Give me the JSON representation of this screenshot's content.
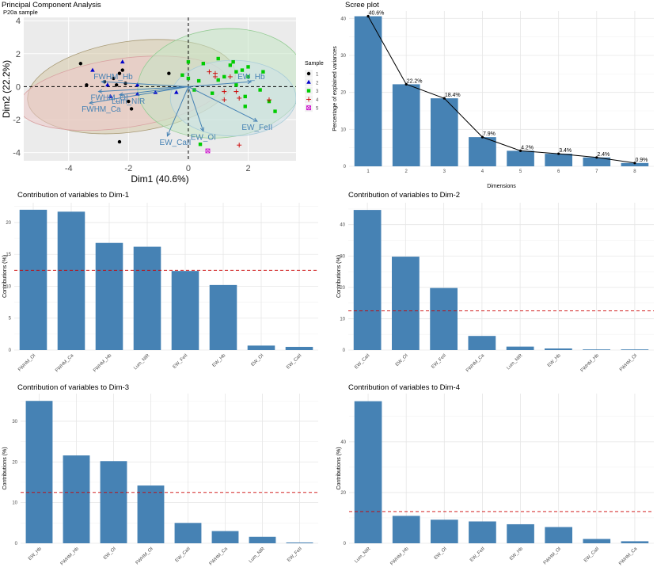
{
  "colors": {
    "bar": "#4682b4",
    "refline": "#cc0000",
    "panel": "#ebebeb",
    "grid": "#e6e6e6"
  },
  "chart_data": [
    {
      "id": "pca",
      "type": "scatter",
      "title": "Principal Component Analysis",
      "subtitle": "P20a sample",
      "xlabel": "Dim1 (40.6%)",
      "ylabel": "Dim2 (22.2%)",
      "xlim": [
        -5.5,
        3.6
      ],
      "ylim": [
        -4.5,
        4.2
      ],
      "xticks": [
        -4,
        -2,
        0,
        2
      ],
      "yticks": [
        -4,
        -2,
        0,
        2,
        4
      ],
      "legend": {
        "title": "Sample",
        "position": "right",
        "entries": [
          {
            "label": "1",
            "color": "#000000",
            "marker": "circle"
          },
          {
            "label": "2",
            "color": "#0000cc",
            "marker": "triangle"
          },
          {
            "label": "3",
            "color": "#00cc00",
            "marker": "square"
          },
          {
            "label": "4",
            "color": "#cc0000",
            "marker": "plus"
          },
          {
            "label": "5",
            "color": "#cc00cc",
            "marker": "boxx"
          }
        ]
      },
      "ellipses": [
        {
          "group": "1",
          "cx": -1.9,
          "cy": 0.0,
          "rx": 3.5,
          "ry": 2.75,
          "angle": -8,
          "fill": "#d5c9a8",
          "stroke": "#a89a75"
        },
        {
          "group": "2",
          "cx": -2.2,
          "cy": -0.4,
          "rx": 3.5,
          "ry": 2.1,
          "angle": -8,
          "fill": "#ecc9c9",
          "stroke": "#d9a3a3"
        },
        {
          "group": "3",
          "cx": 1.1,
          "cy": 0.2,
          "rx": 2.8,
          "ry": 3.3,
          "angle": -6,
          "fill": "#c4e6c4",
          "stroke": "#94cc94"
        },
        {
          "group": "4",
          "cx": 1.5,
          "cy": -0.7,
          "rx": 2.1,
          "ry": 2.3,
          "angle": 0,
          "fill": "#cde0e8",
          "stroke": "#a8ccd8"
        }
      ],
      "points": [
        {
          "x": -3.6,
          "y": 1.4,
          "g": "1"
        },
        {
          "x": -2.2,
          "y": 1.0,
          "g": "1"
        },
        {
          "x": -2.3,
          "y": 0.8,
          "g": "1"
        },
        {
          "x": -2.5,
          "y": 0.5,
          "g": "1"
        },
        {
          "x": -2.1,
          "y": 0.2,
          "g": "1"
        },
        {
          "x": -2.4,
          "y": 0.1,
          "g": "1"
        },
        {
          "x": -3.4,
          "y": 0.1,
          "g": "1"
        },
        {
          "x": -2.8,
          "y": 0.3,
          "g": "1"
        },
        {
          "x": -2.0,
          "y": -0.9,
          "g": "1"
        },
        {
          "x": -1.9,
          "y": -1.35,
          "g": "1"
        },
        {
          "x": -2.3,
          "y": -3.35,
          "g": "1"
        },
        {
          "x": -0.65,
          "y": 0.8,
          "g": "1"
        },
        {
          "x": -3.2,
          "y": 1.0,
          "g": "2"
        },
        {
          "x": -2.2,
          "y": 1.5,
          "g": "2"
        },
        {
          "x": -2.7,
          "y": 0.1,
          "g": "2"
        },
        {
          "x": -1.7,
          "y": 0.1,
          "g": "2"
        },
        {
          "x": -1.1,
          "y": -0.35,
          "g": "2"
        },
        {
          "x": -1.7,
          "y": -0.45,
          "g": "2"
        },
        {
          "x": -2.6,
          "y": -0.6,
          "g": "2"
        },
        {
          "x": -0.4,
          "y": -0.35,
          "g": "2"
        },
        {
          "x": 0.0,
          "y": 1.5,
          "g": "3"
        },
        {
          "x": 0.5,
          "y": 1.4,
          "g": "3"
        },
        {
          "x": 1.5,
          "y": 1.5,
          "g": "3"
        },
        {
          "x": 1.0,
          "y": 1.7,
          "g": "3"
        },
        {
          "x": 1.4,
          "y": 1.3,
          "g": "3"
        },
        {
          "x": 2.0,
          "y": 1.2,
          "g": "3"
        },
        {
          "x": 1.8,
          "y": 1.0,
          "g": "3"
        },
        {
          "x": 2.0,
          "y": 0.6,
          "g": "3"
        },
        {
          "x": 1.2,
          "y": 0.6,
          "g": "3"
        },
        {
          "x": 1.6,
          "y": 0.9,
          "g": "3"
        },
        {
          "x": 2.5,
          "y": 0.9,
          "g": "3"
        },
        {
          "x": -0.2,
          "y": 0.7,
          "g": "3"
        },
        {
          "x": 0.0,
          "y": 0.5,
          "g": "3"
        },
        {
          "x": 0.35,
          "y": 0.35,
          "g": "3"
        },
        {
          "x": 1.0,
          "y": 0.4,
          "g": "3"
        },
        {
          "x": 1.6,
          "y": 0.1,
          "g": "3"
        },
        {
          "x": 0.8,
          "y": -0.4,
          "g": "3"
        },
        {
          "x": 2.4,
          "y": -0.2,
          "g": "3"
        },
        {
          "x": 2.7,
          "y": -0.9,
          "g": "3"
        },
        {
          "x": 0.2,
          "y": -0.2,
          "g": "3"
        },
        {
          "x": 1.9,
          "y": -0.6,
          "g": "3"
        },
        {
          "x": 2.9,
          "y": -1.5,
          "g": "3"
        },
        {
          "x": 1.9,
          "y": -1.2,
          "g": "3"
        },
        {
          "x": 0.4,
          "y": -3.5,
          "g": "3"
        },
        {
          "x": 0.7,
          "y": 0.9,
          "g": "4"
        },
        {
          "x": 0.9,
          "y": 0.8,
          "g": "4"
        },
        {
          "x": 1.4,
          "y": 0.6,
          "g": "4"
        },
        {
          "x": 0.9,
          "y": 0.6,
          "g": "4"
        },
        {
          "x": 1.2,
          "y": -0.3,
          "g": "4"
        },
        {
          "x": 1.6,
          "y": -0.3,
          "g": "4"
        },
        {
          "x": 1.7,
          "y": -0.7,
          "g": "4"
        },
        {
          "x": 1.2,
          "y": -0.8,
          "g": "4"
        },
        {
          "x": 2.7,
          "y": -0.8,
          "g": "4"
        },
        {
          "x": 1.7,
          "y": -3.55,
          "g": "4"
        },
        {
          "x": 0.65,
          "y": -3.9,
          "g": "5"
        }
      ],
      "variables": [
        {
          "name": "FWHM_Hb",
          "x": -2.9,
          "y": 0.3
        },
        {
          "name": "FWHM_OI",
          "x": -3.0,
          "y": -0.3
        },
        {
          "name": "FWHM_Ca",
          "x": -3.3,
          "y": -1.0
        },
        {
          "name": "Lum_NIR",
          "x": -2.3,
          "y": -0.5
        },
        {
          "name": "EW_Hb",
          "x": 2.1,
          "y": 0.3
        },
        {
          "name": "EW_FeII",
          "x": 2.3,
          "y": -2.1
        },
        {
          "name": "EW_OI",
          "x": 0.5,
          "y": -2.7
        },
        {
          "name": "EW_CaII",
          "x": -0.7,
          "y": -3.0
        }
      ]
    },
    {
      "id": "scree",
      "type": "bar",
      "title": "Scree plot",
      "xlabel": "Dimensions",
      "ylabel": "Percentage of explained variances",
      "categories": [
        "1",
        "2",
        "3",
        "4",
        "5",
        "6",
        "7",
        "8"
      ],
      "values": [
        40.6,
        22.2,
        18.4,
        7.9,
        4.2,
        3.4,
        2.4,
        0.9
      ],
      "labels": [
        "40.6%",
        "22.2%",
        "18.4%",
        "7.9%",
        "4.2%",
        "3.4%",
        "2.4%",
        "0.9%"
      ],
      "ylim": [
        0,
        42
      ],
      "yticks": [
        0,
        10,
        20,
        30,
        40
      ]
    },
    {
      "id": "dim1",
      "type": "bar",
      "title": "Contribution of variables to Dim-1",
      "ylabel": "Contributions (%)",
      "categories": [
        "FWHM_OI",
        "FWHM_Ca",
        "FWHM_Hb",
        "Lum_NIR",
        "EW_FeII",
        "EW_Hb",
        "EW_OI",
        "EW_CaII"
      ],
      "values": [
        22.0,
        21.7,
        16.8,
        16.2,
        12.4,
        10.2,
        0.7,
        0.5
      ],
      "refline": 12.5,
      "ylim": [
        0,
        23.1
      ],
      "yticks": [
        0,
        5,
        10,
        15,
        20
      ]
    },
    {
      "id": "dim2",
      "type": "bar",
      "title": "Contribution of variables to Dim-2",
      "ylabel": "Contributions (%)",
      "categories": [
        "EW_CaII",
        "EW_OI",
        "EW_FeII",
        "FWHM_Ca",
        "Lum_NIR",
        "EW_Hb",
        "FWHM_Hb",
        "FWHM_OI"
      ],
      "values": [
        44.7,
        29.8,
        19.8,
        4.5,
        1.1,
        0.5,
        0.2,
        0.2
      ],
      "refline": 12.5,
      "ylim": [
        0,
        47
      ],
      "yticks": [
        0,
        10,
        20,
        30,
        40
      ]
    },
    {
      "id": "dim3",
      "type": "bar",
      "title": "Contribution of variables to Dim-3",
      "ylabel": "Contributions (%)",
      "categories": [
        "EW_Hb",
        "FWHM_Hb",
        "EW_OI",
        "FWHM_OI",
        "EW_CaII",
        "FWHM_Ca",
        "Lum_NIR",
        "EW_FeII"
      ],
      "values": [
        35.0,
        21.6,
        20.2,
        14.2,
        5.0,
        3.0,
        1.6,
        0.2
      ],
      "refline": 12.5,
      "ylim": [
        0,
        36.8
      ],
      "yticks": [
        0,
        10,
        20,
        30
      ]
    },
    {
      "id": "dim4",
      "type": "bar",
      "title": "Contribution of variables to Dim-4",
      "ylabel": "Contributions (%)",
      "categories": [
        "Lum_NIR",
        "FWHM_Hb",
        "EW_OI",
        "EW_FeII",
        "EW_Hb",
        "FWHM_OI",
        "EW_CaII",
        "FWHM_Ca"
      ],
      "values": [
        56.0,
        10.8,
        9.3,
        8.6,
        7.5,
        6.4,
        1.7,
        0.8
      ],
      "refline": 12.5,
      "ylim": [
        0,
        59
      ],
      "yticks": [
        0,
        20,
        40
      ]
    }
  ]
}
